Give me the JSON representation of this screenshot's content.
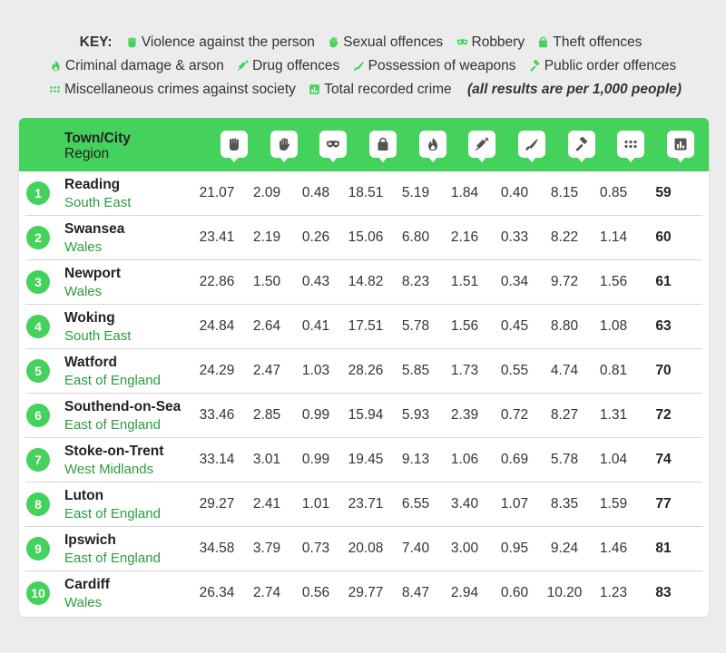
{
  "key": {
    "title": "KEY:",
    "note": "(all results are per 1,000 people)",
    "items": [
      {
        "label": "Violence against the person",
        "icon": "fist-icon"
      },
      {
        "label": "Sexual offences",
        "icon": "hand-icon"
      },
      {
        "label": "Robbery",
        "icon": "mask-icon"
      },
      {
        "label": "Theft offences",
        "icon": "bag-icon"
      },
      {
        "label": "Criminal damage & arson",
        "icon": "flame-icon"
      },
      {
        "label": "Drug offences",
        "icon": "syringe-icon"
      },
      {
        "label": "Possession of weapons",
        "icon": "knife-icon"
      },
      {
        "label": "Public order offences",
        "icon": "gavel-icon"
      },
      {
        "label": "Miscellaneous crimes against society",
        "icon": "dots-icon"
      },
      {
        "label": "Total recorded crime",
        "icon": "bar-chart-icon"
      }
    ]
  },
  "colors": {
    "accent": "#44d15c",
    "region_text": "#2a9d3e",
    "background": "#ececec"
  },
  "chart_data": {
    "type": "table",
    "header": {
      "name": "Town/City",
      "sub": "Region"
    },
    "columns": [
      "Violence against the person",
      "Sexual offences",
      "Robbery",
      "Theft offences",
      "Criminal damage & arson",
      "Drug offences",
      "Possession of weapons",
      "Public order offences",
      "Miscellaneous crimes against society",
      "Total recorded crime"
    ],
    "rows": [
      {
        "rank": "1",
        "city": "Reading",
        "region": "South East",
        "values": [
          "21.07",
          "2.09",
          "0.48",
          "18.51",
          "5.19",
          "1.84",
          "0.40",
          "8.15",
          "0.85",
          "59"
        ]
      },
      {
        "rank": "2",
        "city": "Swansea",
        "region": "Wales",
        "values": [
          "23.41",
          "2.19",
          "0.26",
          "15.06",
          "6.80",
          "2.16",
          "0.33",
          "8.22",
          "1.14",
          "60"
        ]
      },
      {
        "rank": "3",
        "city": "Newport",
        "region": "Wales",
        "values": [
          "22.86",
          "1.50",
          "0.43",
          "14.82",
          "8.23",
          "1.51",
          "0.34",
          "9.72",
          "1.56",
          "61"
        ]
      },
      {
        "rank": "4",
        "city": "Woking",
        "region": "South East",
        "values": [
          "24.84",
          "2.64",
          "0.41",
          "17.51",
          "5.78",
          "1.56",
          "0.45",
          "8.80",
          "1.08",
          "63"
        ]
      },
      {
        "rank": "5",
        "city": "Watford",
        "region": "East of England",
        "values": [
          "24.29",
          "2.47",
          "1.03",
          "28.26",
          "5.85",
          "1.73",
          "0.55",
          "4.74",
          "0.81",
          "70"
        ]
      },
      {
        "rank": "6",
        "city": "Southend-on-Sea",
        "region": "East of England",
        "values": [
          "33.46",
          "2.85",
          "0.99",
          "15.94",
          "5.93",
          "2.39",
          "0.72",
          "8.27",
          "1.31",
          "72"
        ]
      },
      {
        "rank": "7",
        "city": "Stoke-on-Trent",
        "region": "West Midlands",
        "values": [
          "33.14",
          "3.01",
          "0.99",
          "19.45",
          "9.13",
          "1.06",
          "0.69",
          "5.78",
          "1.04",
          "74"
        ]
      },
      {
        "rank": "8",
        "city": "Luton",
        "region": "East of England",
        "values": [
          "29.27",
          "2.41",
          "1.01",
          "23.71",
          "6.55",
          "3.40",
          "1.07",
          "8.35",
          "1.59",
          "77"
        ]
      },
      {
        "rank": "9",
        "city": "Ipswich",
        "region": "East of England",
        "values": [
          "34.58",
          "3.79",
          "0.73",
          "20.08",
          "7.40",
          "3.00",
          "0.95",
          "9.24",
          "1.46",
          "81"
        ]
      },
      {
        "rank": "10",
        "city": "Cardiff",
        "region": "Wales",
        "values": [
          "26.34",
          "2.74",
          "0.56",
          "29.77",
          "8.47",
          "2.94",
          "0.60",
          "10.20",
          "1.23",
          "83"
        ]
      }
    ]
  }
}
